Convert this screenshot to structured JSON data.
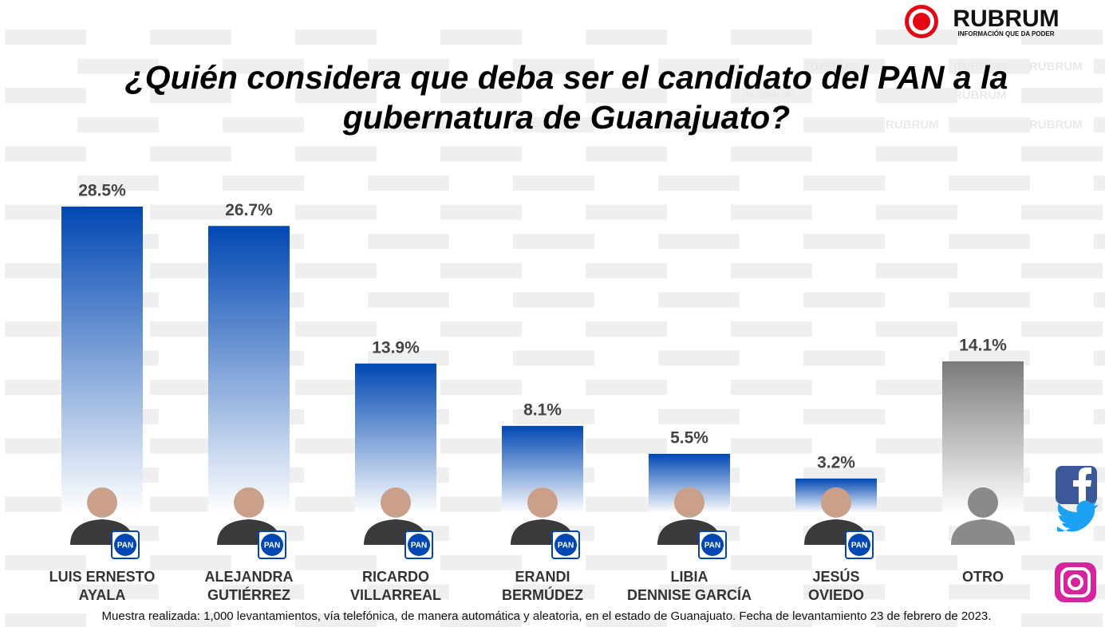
{
  "chart_data": {
    "type": "bar",
    "title": "¿Quién considera que deba ser el  candidato del PAN a la gubernatura de Guanajuato?",
    "categories": [
      "LUIS ERNESTO\nAYALA",
      "ALEJANDRA\nGUTIÉRREZ",
      "RICARDO\nVILLARREAL",
      "ERANDI\nBERMÚDEZ",
      "LIBIA\nDENNISE GARCÍA",
      "JESÚS\nOVIEDO",
      "OTRO"
    ],
    "values": [
      28.5,
      26.7,
      13.9,
      8.1,
      5.5,
      3.2,
      14.1
    ],
    "value_labels": [
      "28.5%",
      "26.7%",
      "13.9%",
      "8.1%",
      "5.5%",
      "3.2%",
      "14.1%"
    ],
    "colors": [
      "#0047b3",
      "#0047b3",
      "#0047b3",
      "#0047b3",
      "#0047b3",
      "#0047b3",
      "#7a7a7a"
    ],
    "badge": "PAN",
    "footnote": "Muestra realizada: 1,000 levantamientos, vía telefónica, de manera automática y aleatoria, en el estado de Guanajuato. Fecha de levantamiento 23 de febrero de 2023.",
    "logo": "RUBRUM",
    "tagline": "INFORMACIÓN QUE DA PODER",
    "watermark": "RUBRUM"
  }
}
